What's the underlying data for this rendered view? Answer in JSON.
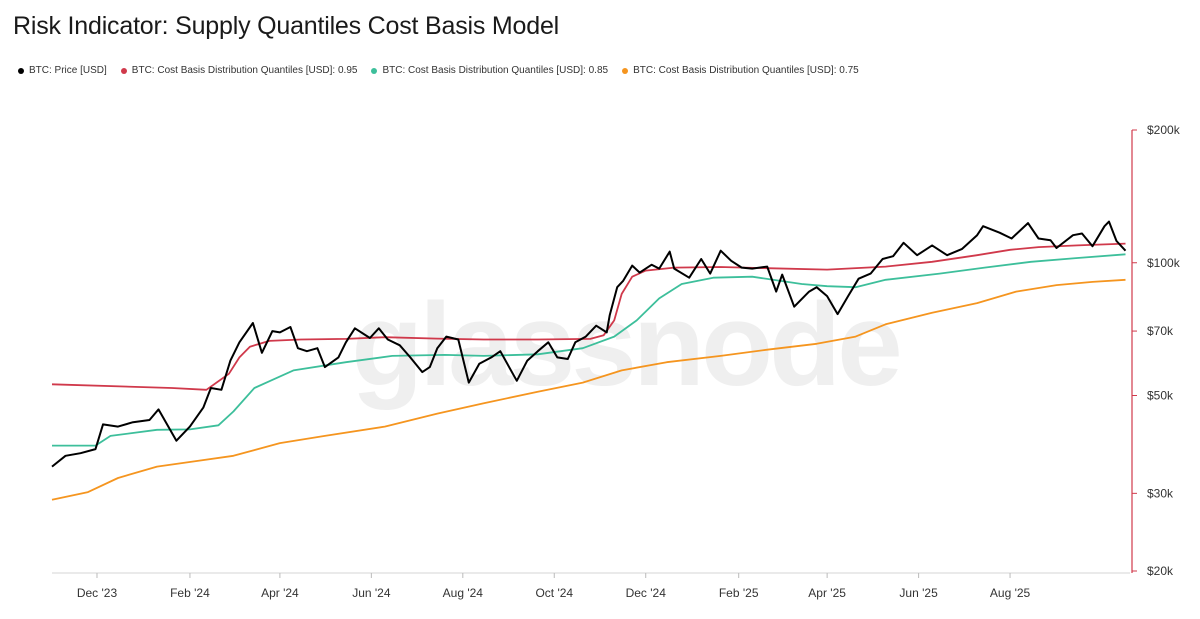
{
  "chart_data": {
    "type": "line",
    "title": "Risk Indicator: Supply Quantiles Cost Basis Model",
    "watermark": "glassnode",
    "y_scale": "log",
    "ylim": [
      20000,
      200000
    ],
    "y_ticks": [
      {
        "value": 200000,
        "label": "$200k"
      },
      {
        "value": 100000,
        "label": "$100k"
      },
      {
        "value": 70000,
        "label": "$70k"
      },
      {
        "value": 50000,
        "label": "$50k"
      },
      {
        "value": 30000,
        "label": "$30k"
      },
      {
        "value": 20000,
        "label": "$20k"
      }
    ],
    "x_range": [
      "2023-11-01",
      "2025-10-20"
    ],
    "x_ticks": [
      {
        "date": "2023-12-01",
        "label": "Dec '23"
      },
      {
        "date": "2024-02-01",
        "label": "Feb '24"
      },
      {
        "date": "2024-04-01",
        "label": "Apr '24"
      },
      {
        "date": "2024-06-01",
        "label": "Jun '24"
      },
      {
        "date": "2024-08-01",
        "label": "Aug '24"
      },
      {
        "date": "2024-10-01",
        "label": "Oct '24"
      },
      {
        "date": "2024-12-01",
        "label": "Dec '24"
      },
      {
        "date": "2025-02-01",
        "label": "Feb '25"
      },
      {
        "date": "2025-04-01",
        "label": "Apr '25"
      },
      {
        "date": "2025-06-01",
        "label": "Jun '25"
      },
      {
        "date": "2025-08-01",
        "label": "Aug '25"
      }
    ],
    "series": [
      {
        "name": "BTC: Price [USD]",
        "color": "#000000",
        "points": [
          [
            "2023-11-01",
            34500
          ],
          [
            "2023-11-10",
            36500
          ],
          [
            "2023-11-20",
            37000
          ],
          [
            "2023-11-30",
            37800
          ],
          [
            "2023-12-05",
            43000
          ],
          [
            "2023-12-15",
            42500
          ],
          [
            "2023-12-25",
            43500
          ],
          [
            "2024-01-05",
            44000
          ],
          [
            "2024-01-11",
            46500
          ],
          [
            "2024-01-23",
            39500
          ],
          [
            "2024-02-01",
            42500
          ],
          [
            "2024-02-10",
            47000
          ],
          [
            "2024-02-15",
            52000
          ],
          [
            "2024-02-22",
            51500
          ],
          [
            "2024-02-28",
            60000
          ],
          [
            "2024-03-05",
            66000
          ],
          [
            "2024-03-14",
            73000
          ],
          [
            "2024-03-20",
            62500
          ],
          [
            "2024-03-27",
            70000
          ],
          [
            "2024-04-01",
            69500
          ],
          [
            "2024-04-08",
            71500
          ],
          [
            "2024-04-13",
            64000
          ],
          [
            "2024-04-19",
            63000
          ],
          [
            "2024-04-26",
            64000
          ],
          [
            "2024-05-01",
            58000
          ],
          [
            "2024-05-10",
            61000
          ],
          [
            "2024-05-15",
            66000
          ],
          [
            "2024-05-21",
            71000
          ],
          [
            "2024-05-31",
            67500
          ],
          [
            "2024-06-06",
            71000
          ],
          [
            "2024-06-12",
            67000
          ],
          [
            "2024-06-20",
            65000
          ],
          [
            "2024-06-27",
            61000
          ],
          [
            "2024-07-05",
            56500
          ],
          [
            "2024-07-10",
            58000
          ],
          [
            "2024-07-15",
            64000
          ],
          [
            "2024-07-21",
            68000
          ],
          [
            "2024-07-29",
            67000
          ],
          [
            "2024-08-05",
            53500
          ],
          [
            "2024-08-12",
            59000
          ],
          [
            "2024-08-20",
            61000
          ],
          [
            "2024-08-26",
            63000
          ],
          [
            "2024-09-06",
            54000
          ],
          [
            "2024-09-13",
            60000
          ],
          [
            "2024-09-20",
            63000
          ],
          [
            "2024-09-27",
            66000
          ],
          [
            "2024-10-03",
            61000
          ],
          [
            "2024-10-10",
            60500
          ],
          [
            "2024-10-15",
            66000
          ],
          [
            "2024-10-22",
            68000
          ],
          [
            "2024-10-29",
            72000
          ],
          [
            "2024-11-05",
            69500
          ],
          [
            "2024-11-07",
            76000
          ],
          [
            "2024-11-12",
            88000
          ],
          [
            "2024-11-16",
            91000
          ],
          [
            "2024-11-22",
            98500
          ],
          [
            "2024-11-27",
            95000
          ],
          [
            "2024-12-05",
            99000
          ],
          [
            "2024-12-10",
            97000
          ],
          [
            "2024-12-17",
            106000
          ],
          [
            "2024-12-20",
            97000
          ],
          [
            "2024-12-30",
            92500
          ],
          [
            "2025-01-07",
            102000
          ],
          [
            "2025-01-13",
            94500
          ],
          [
            "2025-01-20",
            106500
          ],
          [
            "2025-01-27",
            101000
          ],
          [
            "2025-02-03",
            97500
          ],
          [
            "2025-02-10",
            97000
          ],
          [
            "2025-02-20",
            98000
          ],
          [
            "2025-02-26",
            86000
          ],
          [
            "2025-03-02",
            94000
          ],
          [
            "2025-03-10",
            79500
          ],
          [
            "2025-03-20",
            86000
          ],
          [
            "2025-03-25",
            88000
          ],
          [
            "2025-04-01",
            84000
          ],
          [
            "2025-04-08",
            76500
          ],
          [
            "2025-04-15",
            84000
          ],
          [
            "2025-04-22",
            92000
          ],
          [
            "2025-04-30",
            94500
          ],
          [
            "2025-05-08",
            102000
          ],
          [
            "2025-05-15",
            103500
          ],
          [
            "2025-05-22",
            111000
          ],
          [
            "2025-05-31",
            104000
          ],
          [
            "2025-06-10",
            109500
          ],
          [
            "2025-06-20",
            104000
          ],
          [
            "2025-06-30",
            107500
          ],
          [
            "2025-07-10",
            115500
          ],
          [
            "2025-07-14",
            121000
          ],
          [
            "2025-07-25",
            117000
          ],
          [
            "2025-08-02",
            113500
          ],
          [
            "2025-08-13",
            123000
          ],
          [
            "2025-08-20",
            113500
          ],
          [
            "2025-08-28",
            112500
          ],
          [
            "2025-09-01",
            108000
          ],
          [
            "2025-09-12",
            115500
          ],
          [
            "2025-09-18",
            116500
          ],
          [
            "2025-09-25",
            109000
          ],
          [
            "2025-10-03",
            121000
          ],
          [
            "2025-10-06",
            124000
          ],
          [
            "2025-10-11",
            112000
          ],
          [
            "2025-10-17",
            106500
          ]
        ]
      },
      {
        "name": "BTC: Cost Basis Distribution Quantiles [USD]: 0.95",
        "color": "#d0394b",
        "points": [
          [
            "2023-11-01",
            53000
          ],
          [
            "2024-01-20",
            52000
          ],
          [
            "2024-02-12",
            51500
          ],
          [
            "2024-02-27",
            56000
          ],
          [
            "2024-03-05",
            61000
          ],
          [
            "2024-03-12",
            64500
          ],
          [
            "2024-03-25",
            66500
          ],
          [
            "2024-04-15",
            67000
          ],
          [
            "2024-05-15",
            67200
          ],
          [
            "2024-06-10",
            67800
          ],
          [
            "2024-07-15",
            67300
          ],
          [
            "2024-08-15",
            67000
          ],
          [
            "2024-09-20",
            67000
          ],
          [
            "2024-10-25",
            67200
          ],
          [
            "2024-11-03",
            68500
          ],
          [
            "2024-11-10",
            74000
          ],
          [
            "2024-11-15",
            85000
          ],
          [
            "2024-11-22",
            93000
          ],
          [
            "2024-12-01",
            96000
          ],
          [
            "2024-12-20",
            97500
          ],
          [
            "2025-01-20",
            97800
          ],
          [
            "2025-02-20",
            97200
          ],
          [
            "2025-04-01",
            96500
          ],
          [
            "2025-05-10",
            98000
          ],
          [
            "2025-06-10",
            100500
          ],
          [
            "2025-07-10",
            104000
          ],
          [
            "2025-08-01",
            107000
          ],
          [
            "2025-08-20",
            108500
          ],
          [
            "2025-09-15",
            109500
          ],
          [
            "2025-10-17",
            110500
          ]
        ]
      },
      {
        "name": "BTC: Cost Basis Distribution Quantiles [USD]: 0.85",
        "color": "#3dbf9b",
        "points": [
          [
            "2023-11-01",
            38500
          ],
          [
            "2023-11-30",
            38500
          ],
          [
            "2023-12-10",
            40500
          ],
          [
            "2024-01-10",
            41800
          ],
          [
            "2024-02-01",
            41900
          ],
          [
            "2024-02-20",
            42800
          ],
          [
            "2024-03-01",
            46000
          ],
          [
            "2024-03-15",
            52000
          ],
          [
            "2024-04-10",
            57000
          ],
          [
            "2024-05-15",
            59500
          ],
          [
            "2024-06-15",
            61500
          ],
          [
            "2024-07-20",
            61800
          ],
          [
            "2024-08-15",
            61500
          ],
          [
            "2024-09-20",
            62000
          ],
          [
            "2024-10-20",
            64000
          ],
          [
            "2024-11-10",
            68000
          ],
          [
            "2024-11-25",
            74000
          ],
          [
            "2024-12-10",
            83000
          ],
          [
            "2024-12-25",
            89500
          ],
          [
            "2025-01-15",
            92500
          ],
          [
            "2025-02-10",
            93000
          ],
          [
            "2025-03-15",
            89500
          ],
          [
            "2025-04-01",
            88500
          ],
          [
            "2025-04-20",
            88000
          ],
          [
            "2025-05-10",
            91500
          ],
          [
            "2025-06-15",
            94500
          ],
          [
            "2025-07-15",
            97500
          ],
          [
            "2025-08-15",
            100500
          ],
          [
            "2025-09-15",
            102500
          ],
          [
            "2025-10-17",
            104500
          ]
        ]
      },
      {
        "name": "BTC: Cost Basis Distribution Quantiles [USD]: 0.75",
        "color": "#f5951f",
        "points": [
          [
            "2023-11-01",
            29000
          ],
          [
            "2023-11-25",
            30200
          ],
          [
            "2023-12-15",
            32500
          ],
          [
            "2024-01-10",
            34500
          ],
          [
            "2024-02-05",
            35500
          ],
          [
            "2024-03-01",
            36500
          ],
          [
            "2024-04-01",
            39000
          ],
          [
            "2024-05-01",
            40500
          ],
          [
            "2024-06-10",
            42500
          ],
          [
            "2024-07-15",
            45500
          ],
          [
            "2024-08-15",
            48000
          ],
          [
            "2024-09-20",
            51000
          ],
          [
            "2024-10-20",
            53500
          ],
          [
            "2024-11-15",
            57000
          ],
          [
            "2024-12-15",
            59500
          ],
          [
            "2025-01-20",
            61500
          ],
          [
            "2025-02-20",
            63500
          ],
          [
            "2025-03-25",
            65500
          ],
          [
            "2025-04-20",
            68000
          ],
          [
            "2025-05-10",
            72500
          ],
          [
            "2025-06-10",
            77000
          ],
          [
            "2025-07-10",
            81000
          ],
          [
            "2025-08-05",
            86000
          ],
          [
            "2025-09-01",
            89000
          ],
          [
            "2025-09-25",
            90500
          ],
          [
            "2025-10-17",
            91500
          ]
        ]
      }
    ]
  }
}
